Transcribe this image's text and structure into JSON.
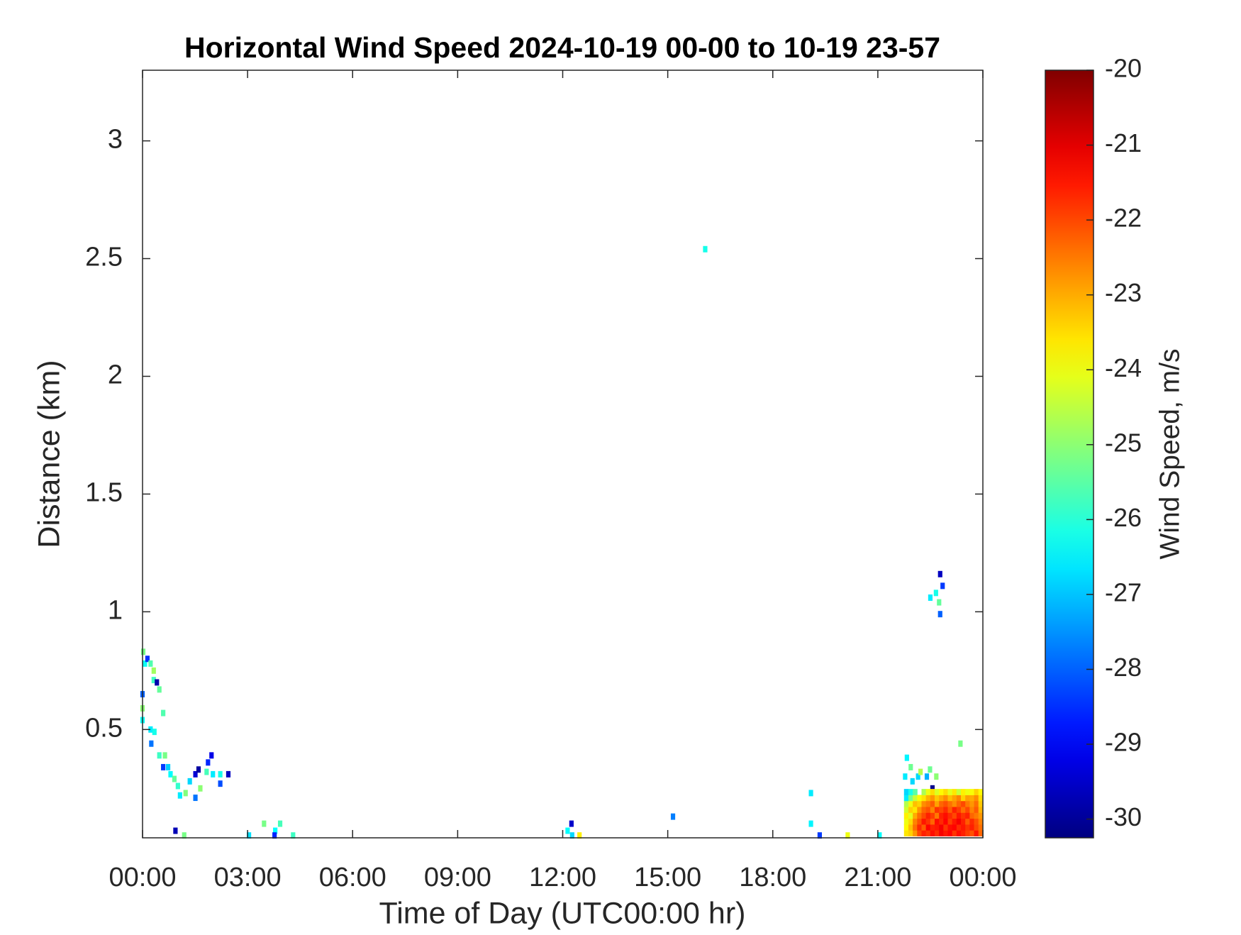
{
  "chart_data": {
    "type": "heatmap",
    "title": "Horizontal Wind Speed 2024-10-19 00-00 to 10-19 23-57",
    "x_label": "Time of Day (UTC00:00 hr)",
    "y_label": "Distance (km)",
    "colorbar_label": "Wind Speed, m/s",
    "colormap": "jet",
    "xlim": [
      0,
      24
    ],
    "ylim": [
      0.04,
      3.3
    ],
    "clim": [
      -30.25,
      -20
    ],
    "xticks": [
      {
        "value": 0,
        "label": "00:00"
      },
      {
        "value": 3,
        "label": "03:00"
      },
      {
        "value": 6,
        "label": "06:00"
      },
      {
        "value": 9,
        "label": "09:00"
      },
      {
        "value": 12,
        "label": "12:00"
      },
      {
        "value": 15,
        "label": "15:00"
      },
      {
        "value": 18,
        "label": "18:00"
      },
      {
        "value": 21,
        "label": "21:00"
      },
      {
        "value": 24,
        "label": "00:00"
      }
    ],
    "yticks": [
      0.5,
      1,
      1.5,
      2,
      2.5,
      3
    ],
    "cticks": [
      -20,
      -21,
      -22,
      -23,
      -24,
      -25,
      -26,
      -27,
      -28,
      -29,
      -30
    ],
    "x": [
      0.02,
      0.07,
      0.14,
      0.23,
      0.32,
      0.32,
      0.41,
      0.48,
      0.0,
      0.0,
      0.0,
      0.59,
      0.23,
      0.34,
      0.25,
      0.48,
      0.64,
      0.59,
      0.73,
      0.8,
      0.91,
      1.01,
      1.07,
      1.23,
      1.35,
      1.51,
      1.6,
      1.51,
      1.65,
      1.83,
      1.87,
      1.97,
      2.01,
      2.22,
      2.22,
      2.45,
      0.94,
      1.19,
      3.04,
      3.47,
      3.79,
      3.93,
      3.77,
      4.3,
      12.14,
      12.25,
      12.27,
      12.48,
      15.15,
      16.07,
      19.09,
      19.09,
      19.34,
      20.14,
      21.05,
      23.36,
      22.78,
      22.85,
      22.5,
      22.66,
      22.75,
      22.78,
      21.83,
      21.94,
      22.15,
      22.4,
      22.49,
      22.67,
      22.22,
      21.99,
      22.56,
      21.78
    ],
    "y": [
      0.83,
      0.78,
      0.8,
      0.78,
      0.75,
      0.71,
      0.7,
      0.67,
      0.65,
      0.59,
      0.54,
      0.57,
      0.5,
      0.49,
      0.44,
      0.39,
      0.39,
      0.34,
      0.34,
      0.31,
      0.29,
      0.26,
      0.22,
      0.23,
      0.28,
      0.31,
      0.33,
      0.21,
      0.25,
      0.32,
      0.36,
      0.39,
      0.31,
      0.27,
      0.31,
      0.31,
      0.07,
      0.05,
      0.05,
      0.1,
      0.07,
      0.1,
      0.05,
      0.05,
      0.07,
      0.1,
      0.05,
      0.05,
      0.13,
      2.54,
      0.23,
      0.1,
      0.05,
      0.05,
      0.05,
      0.44,
      1.16,
      1.11,
      1.06,
      1.08,
      1.04,
      0.99,
      0.38,
      0.34,
      0.3,
      0.3,
      0.33,
      0.3,
      0.32,
      0.28,
      0.25,
      0.3
    ],
    "values": [
      -25.2,
      -26.3,
      -28.5,
      -25.6,
      -24.8,
      -25.8,
      -29.8,
      -25.4,
      -28.0,
      -25.0,
      -26.3,
      -25.6,
      -26.6,
      -26.2,
      -27.8,
      -25.8,
      -25.2,
      -28.4,
      -26.9,
      -26.4,
      -25.4,
      -25.9,
      -26.6,
      -25.1,
      -26.8,
      -29.4,
      -29.9,
      -27.8,
      -25.0,
      -25.7,
      -28.6,
      -29.2,
      -26.6,
      -28.2,
      -26.2,
      -29.6,
      -29.7,
      -25.2,
      -26.7,
      -25.2,
      -26.4,
      -25.7,
      -28.6,
      -25.8,
      -26.4,
      -29.5,
      -26.8,
      -23.7,
      -27.7,
      -26.2,
      -26.6,
      -26.5,
      -28.4,
      -24.0,
      -26.4,
      -25.2,
      -29.6,
      -28.4,
      -26.6,
      -26.2,
      -25.4,
      -28.0,
      -26.5,
      -25.3,
      -26.8,
      -27.2,
      -25.3,
      -25.0,
      -24.6,
      -26.8,
      -30.1,
      -26.6
    ],
    "grid": {
      "x": [
        21.81,
        21.935,
        22.06,
        22.185,
        22.31,
        22.435,
        22.56,
        22.685,
        22.81,
        22.935,
        23.06,
        23.185,
        23.31,
        23.435,
        23.56,
        23.685,
        23.81,
        23.935
      ],
      "y": [
        0.06,
        0.085,
        0.11,
        0.135,
        0.16,
        0.185,
        0.21,
        0.235
      ],
      "values": [
        [
          -23.6,
          -23.4,
          -22.8,
          -22.0,
          -21.6,
          -21.8,
          -21.4,
          -21.7,
          -21.2,
          -21.5,
          -21.3,
          -21.8,
          -21.4,
          -21.6,
          -21.9,
          -22.1,
          -21.5,
          -22.3
        ],
        [
          -23.8,
          -23.2,
          -22.4,
          -21.7,
          -22.2,
          -21.3,
          -21.6,
          -21.5,
          -21.2,
          -21.8,
          -21.4,
          -21.3,
          -21.7,
          -21.5,
          -21.8,
          -21.6,
          -22.0,
          -22.4
        ],
        [
          -24.0,
          -23.5,
          -22.6,
          -22.1,
          -21.5,
          -21.8,
          -22.3,
          -21.4,
          -21.7,
          -21.3,
          -21.9,
          -21.5,
          -21.2,
          -21.6,
          -22.2,
          -21.7,
          -22.1,
          -22.6
        ],
        [
          -23.7,
          -24.1,
          -23.0,
          -22.4,
          -22.0,
          -21.6,
          -21.9,
          -22.5,
          -21.6,
          -21.4,
          -21.7,
          -22.0,
          -21.5,
          -21.8,
          -21.6,
          -22.3,
          -22.5,
          -22.8
        ],
        [
          -24.3,
          -23.4,
          -23.6,
          -22.8,
          -22.3,
          -22.1,
          -22.6,
          -21.8,
          -22.0,
          -21.7,
          -22.2,
          -21.6,
          -21.9,
          -22.4,
          -22.0,
          -22.6,
          -22.2,
          -23.1
        ],
        [
          -24.6,
          -24.0,
          -23.2,
          -23.4,
          -22.7,
          -22.5,
          -22.2,
          -22.9,
          -22.3,
          -22.1,
          -22.4,
          -22.7,
          -22.3,
          -22.0,
          -22.5,
          -22.8,
          -22.4,
          -23.3
        ],
        [
          -26.6,
          -25.2,
          -24.4,
          -23.9,
          -23.6,
          -23.1,
          -22.8,
          -23.3,
          -23.0,
          -22.7,
          -23.2,
          -22.9,
          -22.6,
          -23.4,
          -22.9,
          -23.0,
          -22.7,
          -23.5
        ],
        [
          -26.8,
          -26.2,
          -25.5,
          null,
          -24.7,
          -24.0,
          -23.5,
          -24.2,
          -23.8,
          -23.5,
          -24.1,
          -23.6,
          -24.4,
          -23.7,
          -24.0,
          -23.9,
          -23.4,
          -23.8
        ]
      ]
    }
  }
}
